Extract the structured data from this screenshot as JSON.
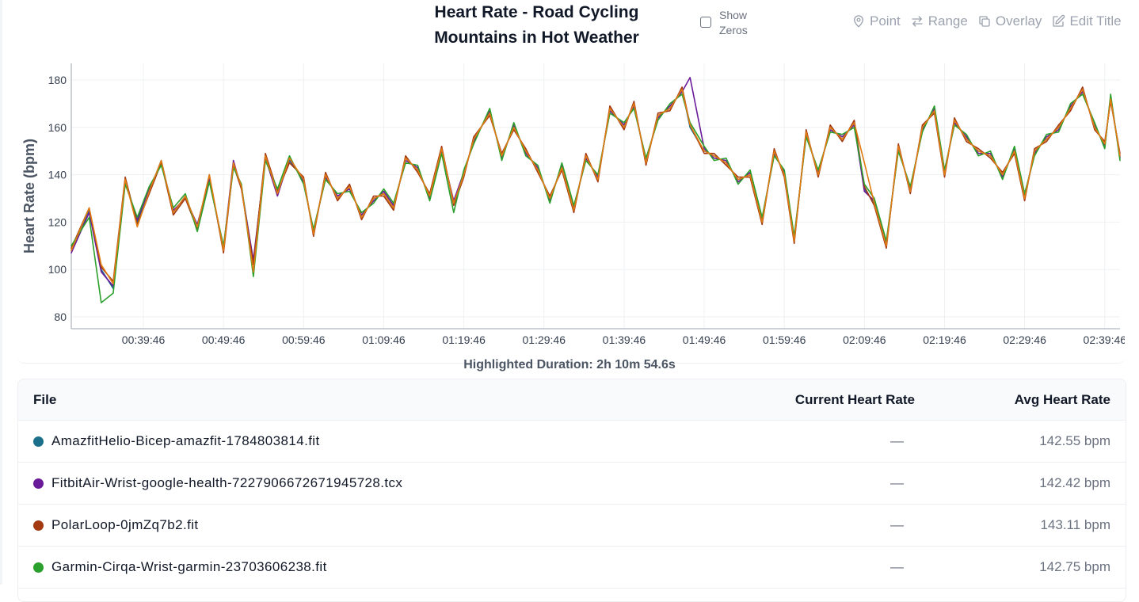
{
  "title": {
    "line1": "Heart Rate - Road Cycling",
    "line2": "Mountains in Hot Weather"
  },
  "show_zeros": {
    "label_line1": "Show",
    "label_line2": "Zeros",
    "checked": false
  },
  "toolbar": {
    "point": "Point",
    "range": "Range",
    "overlay": "Overlay",
    "edit_title": "Edit Title"
  },
  "icons": {
    "point": "map-pin-icon",
    "range": "arrows-left-right-icon",
    "overlay": "copy-icon",
    "edit_title": "edit-icon"
  },
  "chart_data": {
    "type": "line",
    "ylabel": "Heart Rate (bpm)",
    "xlabel": "",
    "ylim": [
      75,
      187
    ],
    "yticks": [
      80,
      100,
      120,
      140,
      160,
      180
    ],
    "xlim": [
      "00:30:46",
      "02:41:40"
    ],
    "xticks": [
      "00:39:46",
      "00:49:46",
      "00:59:46",
      "01:09:46",
      "01:19:46",
      "01:29:46",
      "01:39:46",
      "01:49:46",
      "01:59:46",
      "02:09:46",
      "02:19:46",
      "02:29:46",
      "02:39:46"
    ],
    "grid": true,
    "x": [
      "00:30:46",
      "00:33:00",
      "00:34:30",
      "00:36:00",
      "00:37:30",
      "00:39:00",
      "00:40:30",
      "00:42:00",
      "00:43:30",
      "00:45:00",
      "00:46:30",
      "00:48:00",
      "00:49:46",
      "00:51:00",
      "00:52:00",
      "00:53:30",
      "00:55:00",
      "00:56:30",
      "00:58:00",
      "00:59:46",
      "01:01:00",
      "01:02:30",
      "01:04:00",
      "01:05:30",
      "01:07:00",
      "01:08:30",
      "01:09:46",
      "01:11:00",
      "01:12:30",
      "01:14:00",
      "01:15:30",
      "01:17:00",
      "01:18:30",
      "01:19:46",
      "01:21:00",
      "01:23:00",
      "01:24:30",
      "01:26:00",
      "01:27:30",
      "01:29:00",
      "01:30:30",
      "01:32:00",
      "01:33:30",
      "01:35:00",
      "01:36:30",
      "01:38:00",
      "01:39:46",
      "01:41:00",
      "01:42:30",
      "01:44:00",
      "01:45:30",
      "01:47:00",
      "01:48:00",
      "01:49:46",
      "01:51:00",
      "01:52:30",
      "01:54:00",
      "01:55:30",
      "01:57:00",
      "01:58:30",
      "01:59:46",
      "02:01:00",
      "02:02:30",
      "02:04:00",
      "02:05:30",
      "02:07:00",
      "02:08:30",
      "02:09:46",
      "02:11:00",
      "02:12:30",
      "02:14:00",
      "02:15:30",
      "02:17:00",
      "02:18:30",
      "02:19:46",
      "02:21:00",
      "02:22:30",
      "02:24:00",
      "02:25:30",
      "02:27:00",
      "02:28:30",
      "02:29:46",
      "02:31:00",
      "02:32:30",
      "02:34:00",
      "02:35:30",
      "02:37:00",
      "02:38:30",
      "02:39:46",
      "02:40:30",
      "02:41:40"
    ],
    "series": [
      {
        "name": "AmazfitHelio-Bicep-amazfit-1784803814.fit",
        "color": "#1a6f8a",
        "values": [
          108,
          125,
          100,
          92,
          138,
          120,
          133,
          146,
          124,
          131,
          118,
          139,
          108,
          145,
          135,
          103,
          148,
          132,
          146,
          138,
          115,
          140,
          130,
          135,
          122,
          130,
          132,
          126,
          147,
          142,
          131,
          151,
          128,
          140,
          155,
          166,
          148,
          160,
          150,
          142,
          130,
          143,
          125,
          148,
          138,
          168,
          160,
          170,
          145,
          165,
          168,
          176,
          160,
          150,
          148,
          145,
          138,
          140,
          120,
          150,
          140,
          112,
          158,
          140,
          160,
          155,
          162,
          134,
          128,
          110,
          152,
          133,
          160,
          167,
          140,
          163,
          155,
          150,
          148,
          140,
          150,
          130,
          150,
          155,
          160,
          168,
          176,
          160,
          153,
          172,
          148
        ]
      },
      {
        "name": "FitbitAir-Wrist-google-health-7227906672671945728.tcx",
        "color": "#6a1b9a",
        "values": [
          107,
          124,
          99,
          93,
          137,
          121,
          134,
          145,
          125,
          130,
          119,
          138,
          109,
          146,
          134,
          104,
          147,
          131,
          147,
          137,
          116,
          139,
          131,
          134,
          123,
          129,
          133,
          127,
          146,
          143,
          130,
          150,
          129,
          141,
          154,
          167,
          147,
          161,
          149,
          143,
          129,
          144,
          126,
          147,
          139,
          167,
          161,
          169,
          146,
          164,
          169,
          175,
          181,
          151,
          147,
          146,
          137,
          141,
          121,
          149,
          141,
          113,
          157,
          141,
          159,
          156,
          161,
          133,
          129,
          111,
          151,
          134,
          159,
          168,
          141,
          162,
          156,
          149,
          149,
          139,
          151,
          131,
          149,
          156,
          159,
          169,
          175,
          161,
          152,
          173,
          147
        ]
      },
      {
        "name": "PolarLoop-0jmZq7b2.fit",
        "color": "#a33a12",
        "values": [
          109,
          126,
          101,
          95,
          139,
          119,
          132,
          145,
          123,
          130,
          117,
          140,
          107,
          144,
          134,
          102,
          149,
          133,
          145,
          139,
          114,
          141,
          129,
          136,
          121,
          131,
          131,
          125,
          148,
          141,
          132,
          152,
          127,
          139,
          156,
          165,
          149,
          159,
          151,
          141,
          131,
          142,
          124,
          149,
          137,
          169,
          159,
          171,
          144,
          166,
          167,
          177,
          161,
          149,
          149,
          144,
          139,
          139,
          119,
          151,
          139,
          111,
          159,
          139,
          161,
          154,
          163,
          135,
          127,
          109,
          153,
          132,
          161,
          166,
          139,
          164,
          154,
          151,
          147,
          141,
          149,
          129,
          151,
          154,
          161,
          167,
          177,
          159,
          154,
          171,
          149
        ]
      },
      {
        "name": "Garmin-Cirqa-Wrist-garmin-23703606238.fit",
        "color": "#2ca02c",
        "values": [
          110,
          122,
          86,
          90,
          136,
          122,
          135,
          144,
          126,
          132,
          116,
          137,
          110,
          143,
          136,
          97,
          146,
          134,
          148,
          136,
          117,
          138,
          132,
          133,
          124,
          128,
          134,
          128,
          145,
          144,
          129,
          149,
          124,
          142,
          153,
          168,
          146,
          162,
          148,
          144,
          128,
          145,
          127,
          146,
          140,
          166,
          162,
          168,
          147,
          163,
          170,
          174,
          162,
          152,
          146,
          147,
          136,
          142,
          122,
          148,
          142,
          114,
          156,
          142,
          158,
          157,
          160,
          136,
          130,
          112,
          150,
          135,
          158,
          169,
          142,
          161,
          157,
          148,
          150,
          138,
          152,
          132,
          148,
          157,
          158,
          170,
          174,
          162,
          151,
          174,
          146
        ]
      },
      {
        "name": "",
        "color": "#e07b12",
        "values": [
          108,
          126,
          102,
          94,
          138,
          118,
          133,
          146,
          124,
          131,
          118,
          140,
          108,
          145,
          135,
          99,
          148,
          132,
          147,
          138,
          115,
          140,
          130,
          135,
          122,
          130,
          132,
          126,
          147,
          142,
          131,
          151,
          128,
          140,
          155,
          166,
          148,
          160,
          150,
          142,
          130,
          143,
          125,
          148,
          138,
          168,
          160,
          170,
          145,
          165,
          168,
          176,
          161,
          150,
          148,
          145,
          138,
          140,
          120,
          150,
          140,
          112,
          158,
          140,
          160,
          155,
          162,
          145,
          128,
          110,
          152,
          133,
          160,
          167,
          140,
          163,
          155,
          150,
          148,
          140,
          150,
          130,
          150,
          155,
          160,
          168,
          176,
          160,
          153,
          172,
          148
        ]
      }
    ]
  },
  "highlighted_duration": "Highlighted Duration: 2h 10m 54.6s",
  "table": {
    "headers": {
      "file": "File",
      "current": "Current Heart Rate",
      "avg": "Avg Heart Rate"
    },
    "rows": [
      {
        "file": "AmazfitHelio-Bicep-amazfit-1784803814.fit",
        "color": "#1a6f8a",
        "current": "—",
        "avg": "142.55 bpm"
      },
      {
        "file": "FitbitAir-Wrist-google-health-7227906672671945728.tcx",
        "color": "#6a1b9a",
        "current": "—",
        "avg": "142.42 bpm"
      },
      {
        "file": "PolarLoop-0jmZq7b2.fit",
        "color": "#a33a12",
        "current": "—",
        "avg": "143.11 bpm"
      },
      {
        "file": "Garmin-Cirqa-Wrist-garmin-23703606238.fit",
        "color": "#2ca02c",
        "current": "—",
        "avg": "142.75 bpm"
      }
    ]
  }
}
